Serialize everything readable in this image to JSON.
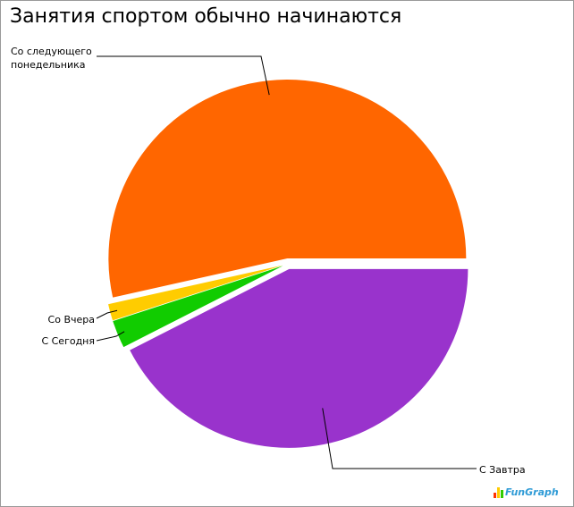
{
  "page": {
    "title": "Занятия спортом обычно начинаются"
  },
  "chart_data": {
    "type": "pie",
    "title": "Занятия спортом обычно начинаются",
    "start_angle_deg": 0,
    "direction": "counterclockwise",
    "exploded": true,
    "slices": [
      {
        "label": "Со следующего понедельника",
        "value": 53.5,
        "color": "#ff6600",
        "label_lines": [
          "Со следующего",
          "понедельника"
        ]
      },
      {
        "label": "Со Вчера",
        "value": 1.5,
        "color": "#ffcc00",
        "label_lines": [
          "Со Вчера"
        ]
      },
      {
        "label": "С Сегодня",
        "value": 2.5,
        "color": "#11cc00",
        "label_lines": [
          "С Сегодня"
        ]
      },
      {
        "label": "С Завтра",
        "value": 42.5,
        "color": "#9933cc",
        "label_lines": [
          "С Завтра"
        ]
      }
    ],
    "legend": "none"
  },
  "branding": {
    "logo_text": "FunGraph",
    "logo_colors": [
      "#ff3300",
      "#ffcc00",
      "#33cc00"
    ]
  }
}
